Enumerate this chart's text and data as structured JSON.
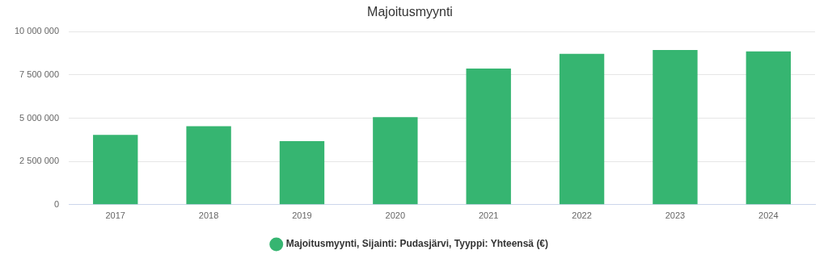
{
  "chart_data": {
    "type": "bar",
    "title": "Majoitusmyynti",
    "categories": [
      "2017",
      "2018",
      "2019",
      "2020",
      "2021",
      "2022",
      "2023",
      "2024"
    ],
    "series": [
      {
        "name": "Majoitusmyynti, Sijainti: Pudasjärvi, Tyyppi: Yhteensä (€)",
        "color": "#36b571",
        "values": [
          4030000,
          4530000,
          3670000,
          5060000,
          7860000,
          8720000,
          8940000,
          8860000
        ]
      }
    ],
    "ylim": [
      0,
      10000000
    ],
    "yticks": [
      {
        "value": 0,
        "label": "0"
      },
      {
        "value": 2500000,
        "label": "2 500 000"
      },
      {
        "value": 5000000,
        "label": "5 000 000"
      },
      {
        "value": 7500000,
        "label": "7 500 000"
      },
      {
        "value": 10000000,
        "label": "10 000 000"
      }
    ],
    "grid": "y",
    "legend": "bottom"
  }
}
